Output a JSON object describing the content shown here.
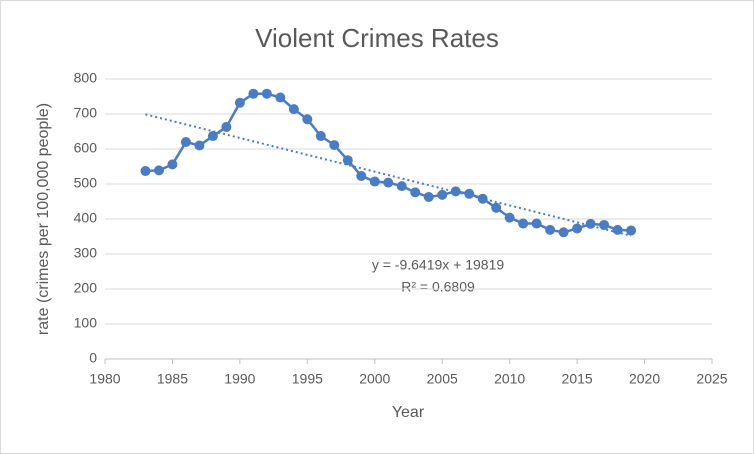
{
  "chart_data": {
    "type": "scatter-line",
    "title": "Violent Crimes Rates",
    "x_label": "Year",
    "y_label": "rate (crimes per 100,000 people)",
    "x": [
      1983,
      1984,
      1985,
      1986,
      1987,
      1988,
      1989,
      1990,
      1991,
      1992,
      1993,
      1994,
      1995,
      1996,
      1997,
      1998,
      1999,
      2000,
      2001,
      2002,
      2003,
      2004,
      2005,
      2006,
      2007,
      2008,
      2009,
      2010,
      2011,
      2012,
      2013,
      2014,
      2015,
      2016,
      2017,
      2018,
      2019
    ],
    "series": [
      {
        "name": "rate",
        "color": "#4a7cc4",
        "values": [
          537,
          539,
          556,
          620,
          610,
          637,
          663,
          732,
          758,
          758,
          747,
          714,
          685,
          637,
          611,
          568,
          523,
          507,
          504,
          494,
          476,
          463,
          469,
          479,
          472,
          458,
          432,
          404,
          387,
          387,
          369,
          362,
          373,
          386,
          383,
          369,
          367
        ]
      }
    ],
    "trendline": {
      "x": [
        1983,
        2019
      ],
      "values": [
        699,
        352
      ],
      "equation": "y = -9.6419x + 19819",
      "r_squared": "R² = 0.6809"
    },
    "xlim": [
      1980,
      2025
    ],
    "xticks": [
      1980,
      1985,
      1990,
      1995,
      2000,
      2005,
      2010,
      2015,
      2020,
      2025
    ],
    "ylim": [
      0,
      800
    ],
    "yticks": [
      0,
      100,
      200,
      300,
      400,
      500,
      600,
      700,
      800
    ],
    "grid": true
  }
}
